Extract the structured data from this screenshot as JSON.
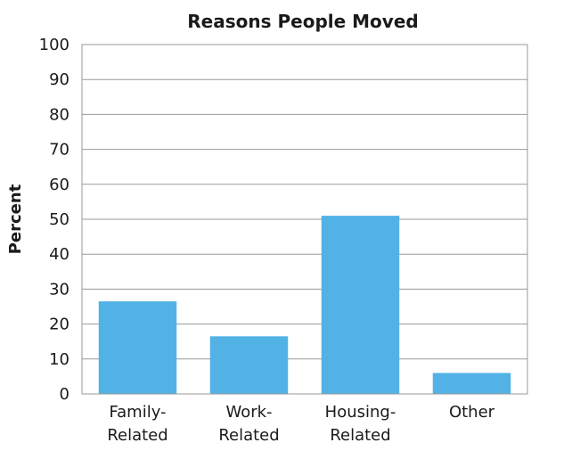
{
  "chart_data": {
    "type": "bar",
    "title": "Reasons People Moved",
    "xlabel": "",
    "ylabel": "Percent",
    "categories": [
      [
        "Family-",
        "Related"
      ],
      [
        "Work-",
        "Related"
      ],
      [
        "Housing-",
        "Related"
      ],
      [
        "Other"
      ]
    ],
    "values": [
      26.5,
      16.5,
      51,
      6
    ],
    "ylim": [
      0,
      100
    ],
    "yticks": [
      0,
      10,
      20,
      30,
      40,
      50,
      60,
      70,
      80,
      90,
      100
    ],
    "grid": true,
    "legend": "none",
    "bar_color": "#52B2E5"
  }
}
